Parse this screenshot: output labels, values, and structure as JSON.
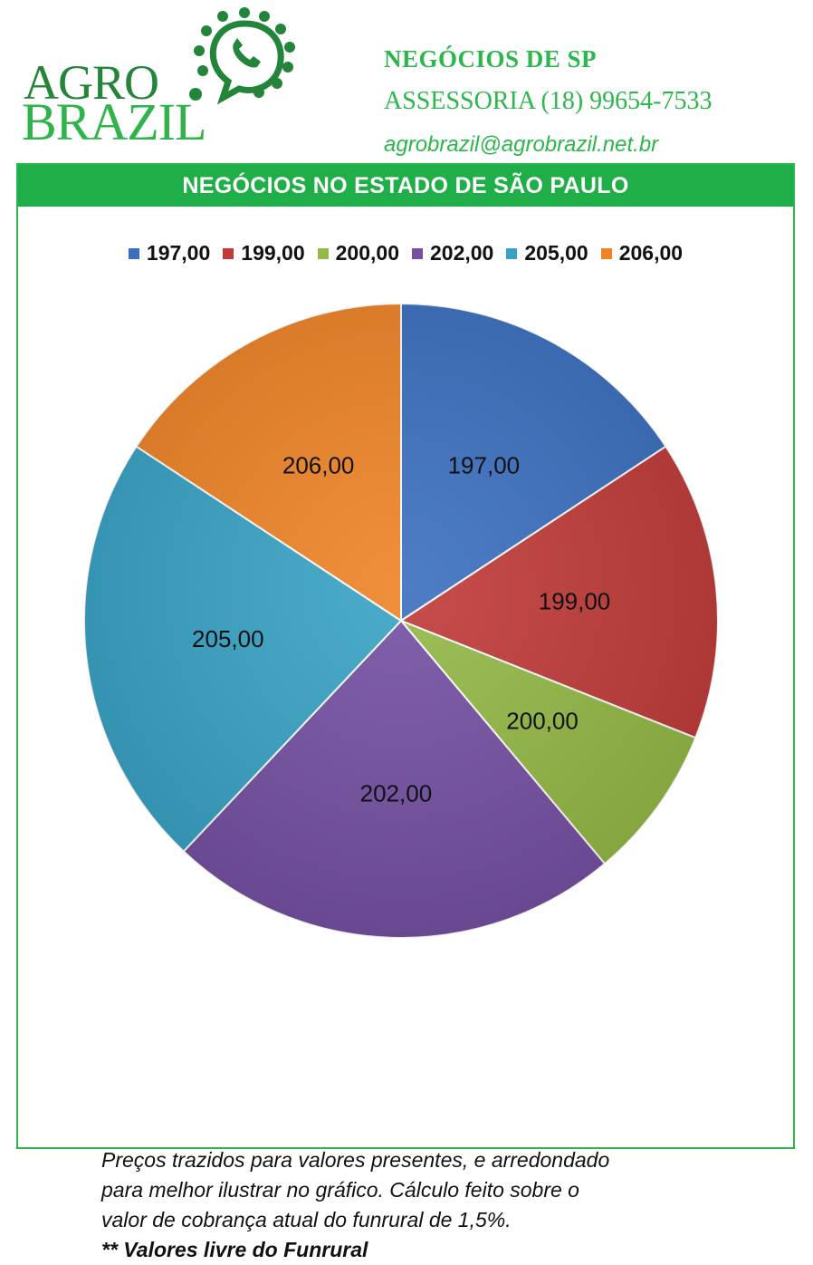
{
  "header": {
    "logo_line1": "AGRO",
    "logo_line2": "BRAZIL",
    "title": "NEGÓCIOS DE SP",
    "phone": "ASSESSORIA (18) 99654-7533",
    "email": "agrobrazil@agrobrazil.net.br"
  },
  "banner": "NEGÓCIOS NO ESTADO DE SÃO PAULO",
  "chart_data": {
    "type": "pie",
    "title": "",
    "slices": [
      {
        "label": "197,00",
        "value": 17,
        "color": "#3a6fbf"
      },
      {
        "label": "199,00",
        "value": 16.5,
        "color": "#bf3a38"
      },
      {
        "label": "200,00",
        "value": 8.5,
        "color": "#93b844"
      },
      {
        "label": "202,00",
        "value": 25,
        "color": "#744fa2"
      },
      {
        "label": "205,00",
        "value": 24,
        "color": "#37a2c4"
      },
      {
        "label": "206,00",
        "value": 17,
        "color": "#ee8326"
      }
    ],
    "legend_position": "top",
    "legend": [
      "197,00",
      "199,00",
      "200,00",
      "202,00",
      "205,00",
      "206,00"
    ]
  },
  "note": {
    "line1": "Preços trazidos para valores presentes, e arredondado",
    "line2": "para melhor ilustrar no gráfico. Cálculo feito sobre o",
    "line3": "valor de cobrança atual do funrural de 1,5%.",
    "line4": "** Valores livre do Funrural"
  }
}
